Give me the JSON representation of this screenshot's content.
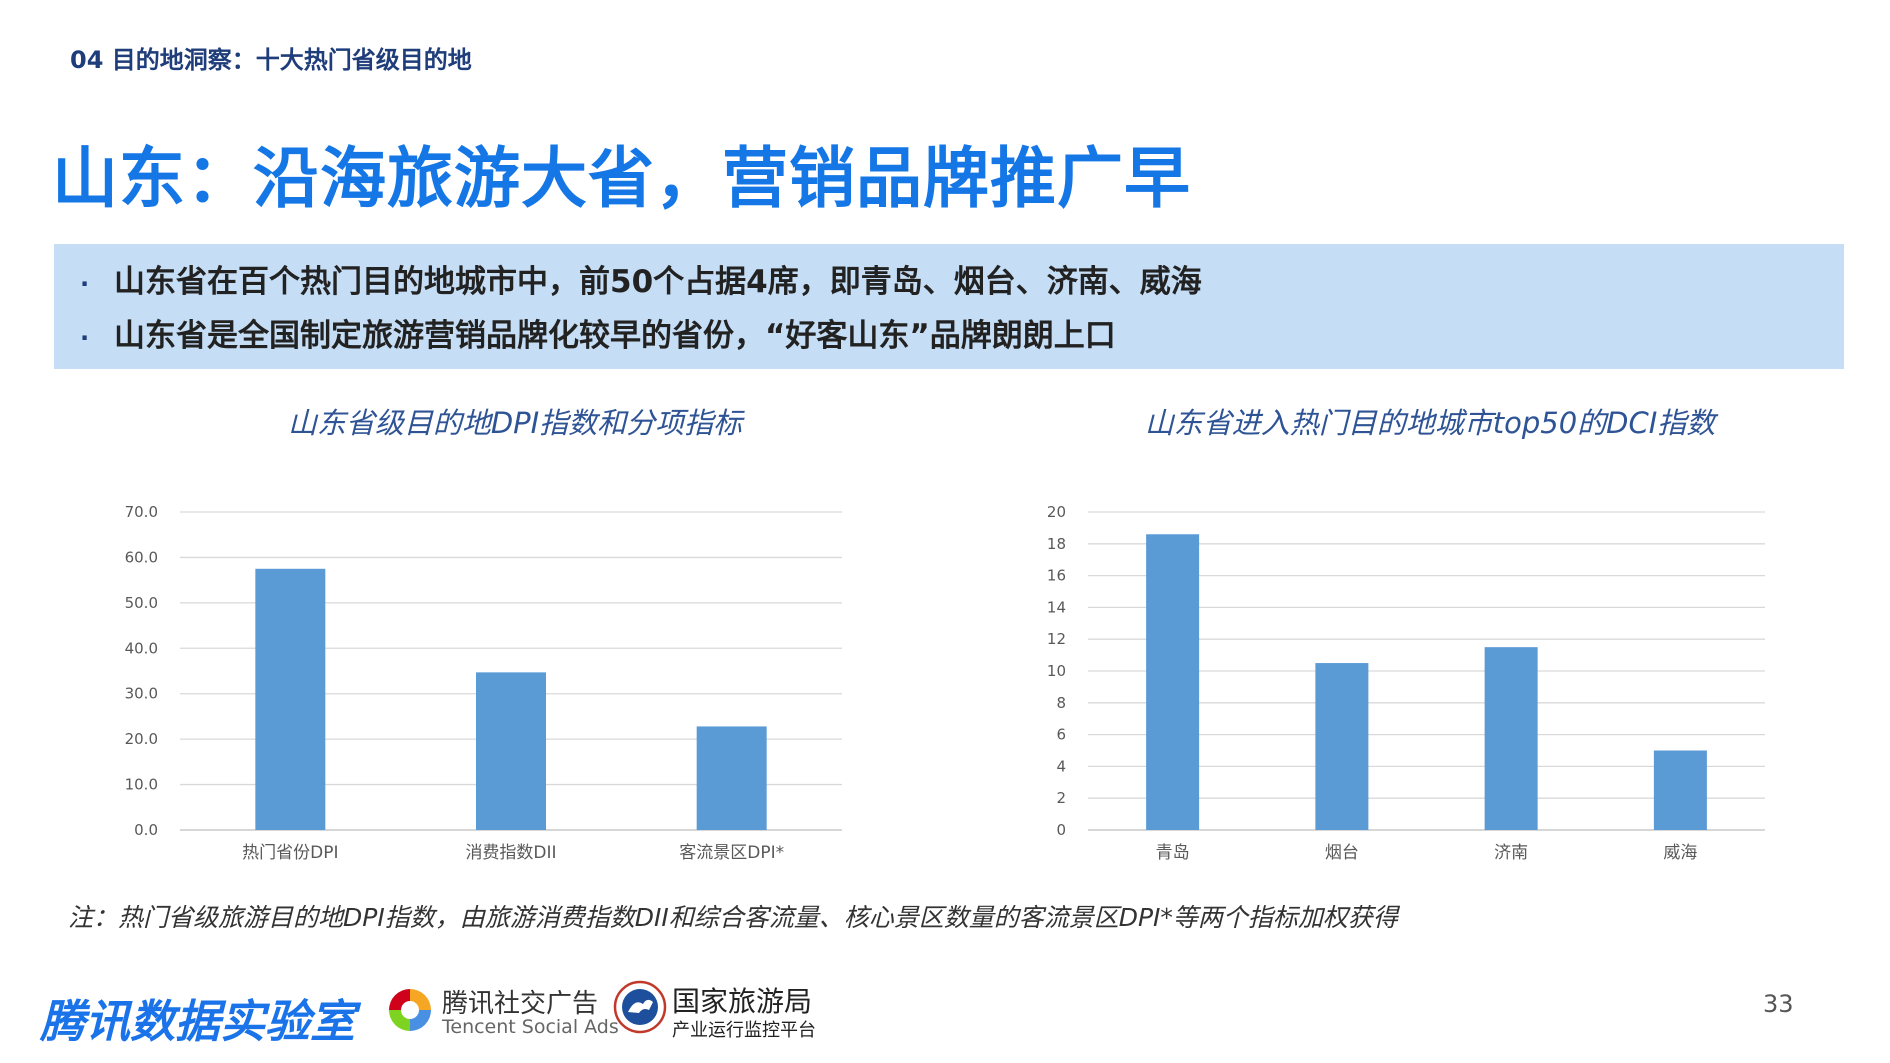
{
  "header": {
    "section": "04 目的地洞察：十大热门省级目的地",
    "title": "山东：沿海旅游大省，营销品牌推广早"
  },
  "bullets": [
    "山东省在百个热门目的地城市中，前50个占据4席，即青岛、烟台、济南、威海",
    "山东省是全国制定旅游营销品牌化较早的省份，“好客山东”品牌朗朗上口"
  ],
  "bullet_marker": "·",
  "chart_data": [
    {
      "type": "bar",
      "title": "山东省级目的地DPI指数和分项指标",
      "categories": [
        "热门省份DPI",
        "消费指数DII",
        "客流景区DPI*"
      ],
      "values": [
        57.5,
        34.7,
        22.8
      ],
      "ylim": [
        0,
        70
      ],
      "yticks": [
        "0.0",
        "10.0",
        "20.0",
        "30.0",
        "40.0",
        "50.0",
        "60.0",
        "70.0"
      ],
      "grid": true,
      "color": "#5b9bd5"
    },
    {
      "type": "bar",
      "title": "山东省进入热门目的地城市top50的DCI指数",
      "categories": [
        "青岛",
        "烟台",
        "济南",
        "威海"
      ],
      "values": [
        18.6,
        10.5,
        11.5,
        5.0
      ],
      "ylim": [
        0,
        20
      ],
      "yticks": [
        "0",
        "2",
        "4",
        "6",
        "8",
        "10",
        "12",
        "14",
        "16",
        "18",
        "20"
      ],
      "grid": true,
      "color": "#5b9bd5"
    }
  ],
  "note": "注：热门省级旅游目的地DPI指数，由旅游消费指数DII和综合客流量、核心景区数量的客流景区DPI*等两个指标加权获得",
  "footer": {
    "brand": "腾讯数据实验室",
    "logo2_cn": "腾讯社交广告",
    "logo2_en": "Tencent Social Ads",
    "logo3_cn": "国家旅游局",
    "logo3_sub": "产业运行监控平台",
    "page_number": "33"
  },
  "colors": {
    "title": "#1577e6",
    "bullet_bg": "#c5ddf5",
    "bar": "#5b9bd5",
    "chart_title": "#2f5496"
  }
}
